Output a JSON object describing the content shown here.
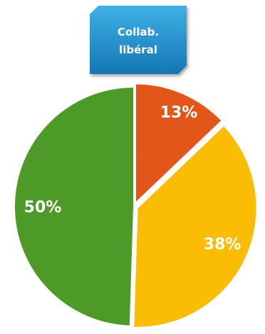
{
  "chart_data": {
    "type": "pie",
    "title_lines": [
      "Collab.",
      "libéral"
    ],
    "slices": [
      {
        "label": "13%",
        "value": 13,
        "color": "#e2561a"
      },
      {
        "label": "38%",
        "value": 38,
        "color": "#fbbc05"
      },
      {
        "label": "50%",
        "value": 50,
        "color": "#4e9a28"
      }
    ],
    "title_box_color": "#1e8dc8"
  }
}
